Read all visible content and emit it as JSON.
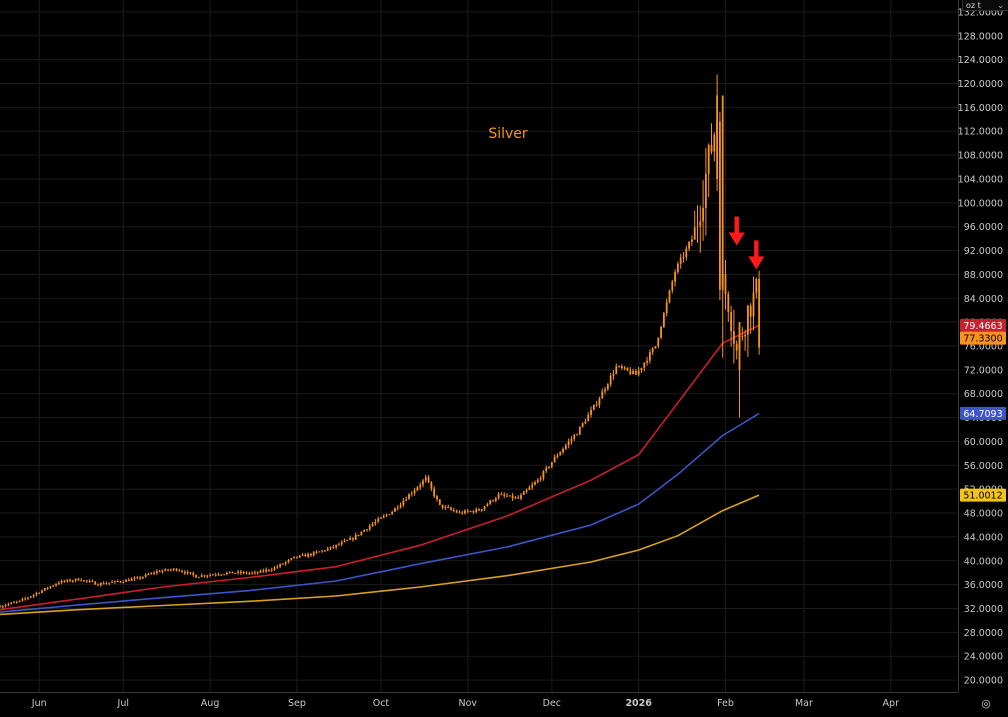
{
  "instrument": {
    "name": "Silver",
    "unit_selector": "oz t",
    "unit_chevron": "chevron-down-icon",
    "settings_icon": "settings-gear-icon"
  },
  "chart_data": {
    "type": "candlestick",
    "title": "Silver",
    "x_axis": {
      "type": "date",
      "range": [
        "2025-05-18",
        "2026-04-25"
      ],
      "ticks": [
        {
          "label": "Jun",
          "date": "2025-06-01"
        },
        {
          "label": "Jul",
          "date": "2025-07-01"
        },
        {
          "label": "Aug",
          "date": "2025-08-01"
        },
        {
          "label": "Sep",
          "date": "2025-09-01"
        },
        {
          "label": "Oct",
          "date": "2025-10-01"
        },
        {
          "label": "Nov",
          "date": "2025-11-01"
        },
        {
          "label": "Dec",
          "date": "2025-12-01"
        },
        {
          "label": "2026",
          "date": "2026-01-01"
        },
        {
          "label": "Feb",
          "date": "2026-02-01"
        },
        {
          "label": "Mar",
          "date": "2026-03-01"
        },
        {
          "label": "Apr",
          "date": "2026-04-01"
        }
      ]
    },
    "y_axis": {
      "position": "right",
      "range": [
        18,
        134
      ],
      "ticks": [
        "20.0000",
        "24.0000",
        "28.0000",
        "32.0000",
        "36.0000",
        "40.0000",
        "44.0000",
        "48.0000",
        "52.0000",
        "56.0000",
        "60.0000",
        "64.0000",
        "68.0000",
        "72.0000",
        "76.0000",
        "80.0000",
        "84.0000",
        "88.0000",
        "92.0000",
        "96.0000",
        "100.0000",
        "104.0000",
        "108.0000",
        "112.0000",
        "116.0000",
        "120.0000",
        "124.0000",
        "128.0000",
        "132.0000"
      ]
    },
    "grid": true,
    "price_series": {
      "name": "",
      "color": "#f7931e",
      "points": [
        [
          "2025-05-18",
          32.4
        ],
        [
          "2025-05-25",
          33.2
        ],
        [
          "2025-06-01",
          34.8
        ],
        [
          "2025-06-08",
          36.4
        ],
        [
          "2025-06-15",
          36.9
        ],
        [
          "2025-06-22",
          36.1
        ],
        [
          "2025-06-29",
          36.5
        ],
        [
          "2025-07-06",
          37.0
        ],
        [
          "2025-07-13",
          38.2
        ],
        [
          "2025-07-20",
          38.6
        ],
        [
          "2025-07-27",
          37.4
        ],
        [
          "2025-08-03",
          37.8
        ],
        [
          "2025-08-10",
          38.0
        ],
        [
          "2025-08-17",
          37.9
        ],
        [
          "2025-08-24",
          38.8
        ],
        [
          "2025-08-31",
          40.5
        ],
        [
          "2025-09-07",
          41.2
        ],
        [
          "2025-09-14",
          42.3
        ],
        [
          "2025-09-21",
          43.8
        ],
        [
          "2025-09-28",
          46.2
        ],
        [
          "2025-10-05",
          48.3
        ],
        [
          "2025-10-12",
          51.5
        ],
        [
          "2025-10-17",
          53.8
        ],
        [
          "2025-10-22",
          49.2
        ],
        [
          "2025-10-29",
          48.0
        ],
        [
          "2025-11-05",
          48.5
        ],
        [
          "2025-11-12",
          51.0
        ],
        [
          "2025-11-19",
          50.4
        ],
        [
          "2025-11-26",
          53.5
        ],
        [
          "2025-12-03",
          57.8
        ],
        [
          "2025-12-10",
          61.5
        ],
        [
          "2025-12-17",
          66.5
        ],
        [
          "2025-12-24",
          72.5
        ],
        [
          "2025-12-31",
          71.2
        ],
        [
          "2026-01-07",
          76.0
        ],
        [
          "2026-01-14",
          88.5
        ],
        [
          "2026-01-21",
          94.8
        ],
        [
          "2026-01-26",
          107.0
        ],
        [
          "2026-01-29",
          114.5
        ],
        [
          "2026-01-30",
          88.0
        ],
        [
          "2026-02-02",
          83.5
        ],
        [
          "2026-02-05",
          75.0
        ],
        [
          "2026-02-09",
          82.0
        ],
        [
          "2026-02-12",
          85.0
        ],
        [
          "2026-02-13",
          77.3
        ]
      ]
    },
    "moving_averages": [
      {
        "name": "",
        "color": "#c8202c",
        "last_value": "79.4663",
        "points": [
          [
            "2025-05-18",
            31.8
          ],
          [
            "2025-06-15",
            33.6
          ],
          [
            "2025-07-15",
            35.6
          ],
          [
            "2025-08-15",
            37.2
          ],
          [
            "2025-09-15",
            39.0
          ],
          [
            "2025-10-15",
            42.6
          ],
          [
            "2025-11-15",
            47.5
          ],
          [
            "2025-12-15",
            53.5
          ],
          [
            "2026-01-01",
            57.8
          ],
          [
            "2026-01-15",
            66.5
          ],
          [
            "2026-01-31",
            76.5
          ],
          [
            "2026-02-13",
            79.4663
          ]
        ]
      },
      {
        "name": "",
        "color": "#3d55c8",
        "last_value": "64.7093",
        "points": [
          [
            "2025-05-18",
            31.4
          ],
          [
            "2025-06-15",
            32.6
          ],
          [
            "2025-07-15",
            33.8
          ],
          [
            "2025-08-15",
            35.0
          ],
          [
            "2025-09-15",
            36.6
          ],
          [
            "2025-10-15",
            39.5
          ],
          [
            "2025-11-15",
            42.3
          ],
          [
            "2025-12-15",
            46.0
          ],
          [
            "2026-01-01",
            49.5
          ],
          [
            "2026-01-15",
            54.5
          ],
          [
            "2026-01-31",
            61.0
          ],
          [
            "2026-02-13",
            64.7093
          ]
        ]
      },
      {
        "name": "",
        "color": "#d9a21c",
        "last_value": "51.0012",
        "points": [
          [
            "2025-05-18",
            31.0
          ],
          [
            "2025-06-15",
            31.8
          ],
          [
            "2025-07-15",
            32.5
          ],
          [
            "2025-08-15",
            33.2
          ],
          [
            "2025-09-15",
            34.1
          ],
          [
            "2025-10-15",
            35.6
          ],
          [
            "2025-11-15",
            37.5
          ],
          [
            "2025-12-15",
            39.8
          ],
          [
            "2026-01-01",
            41.8
          ],
          [
            "2026-01-15",
            44.2
          ],
          [
            "2026-01-31",
            48.4
          ],
          [
            "2026-02-13",
            51.0012
          ]
        ]
      }
    ],
    "price_labels": [
      {
        "value": 79.4663,
        "text": "79.4663",
        "bg": "#c8202c",
        "fg": "#ffffff"
      },
      {
        "value": 77.33,
        "text": "77.3300",
        "bg": "#f7931e",
        "fg": "#000000"
      },
      {
        "value": 64.7093,
        "text": "64.7093",
        "bg": "#3d55c8",
        "fg": "#ffffff"
      },
      {
        "value": 51.0012,
        "text": "51.0012",
        "bg": "#f0c419",
        "fg": "#000000"
      }
    ],
    "annotations": [
      {
        "type": "arrow-down",
        "color": "#ff1a1a",
        "date": "2026-02-05",
        "value": 92
      },
      {
        "type": "arrow-down",
        "color": "#ff1a1a",
        "date": "2026-02-12",
        "value": 88
      }
    ]
  }
}
